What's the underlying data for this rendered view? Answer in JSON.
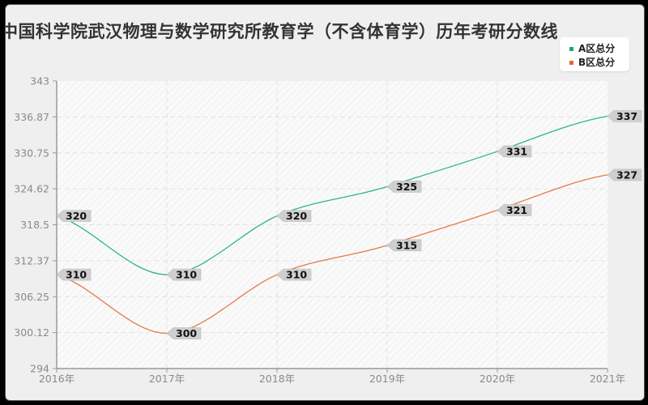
{
  "chart_data": {
    "type": "line",
    "title": "中国科学院武汉物理与数学研究所教育学（不含体育学）历年考研分数线",
    "categories": [
      "2016年",
      "2017年",
      "2018年",
      "2019年",
      "2020年",
      "2021年"
    ],
    "series": [
      {
        "name": "A区总分",
        "color": "#2bb58d",
        "values": [
          320,
          310,
          320,
          325,
          331,
          337
        ]
      },
      {
        "name": "B区总分",
        "color": "#e6784a",
        "values": [
          310,
          300,
          310,
          315,
          321,
          327
        ]
      }
    ],
    "yticks": [
      "343",
      "336.87",
      "330.75",
      "324.62",
      "318.5",
      "312.37",
      "306.25",
      "300.12",
      "294"
    ],
    "ylim": [
      294,
      343
    ],
    "xlabel": "",
    "ylabel": "",
    "grid": true,
    "legend_position": "top-right"
  },
  "legend": {
    "items": [
      {
        "label": "A区总分",
        "color": "#1aa57a"
      },
      {
        "label": "B区总分",
        "color": "#e06a33"
      }
    ]
  }
}
